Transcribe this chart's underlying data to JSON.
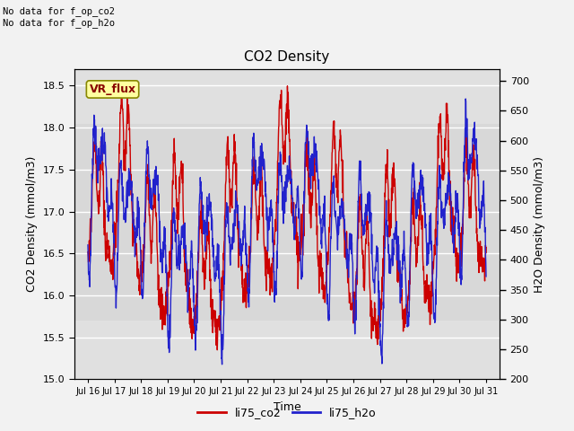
{
  "title": "CO2 Density",
  "xlabel": "Time",
  "ylabel_left": "CO2 Density (mmol/m3)",
  "ylabel_right": "H2O Density (mmol/m3)",
  "text_topleft": "No data for f_op_co2\nNo data for f_op_h2o",
  "annotation_text": "VR_flux",
  "xlim_days": [
    15.5,
    31.5
  ],
  "ylim_left": [
    15.0,
    18.7
  ],
  "ylim_right": [
    200,
    720
  ],
  "xtick_labels": [
    "Jul 16",
    "Jul 17",
    "Jul 18",
    "Jul 19",
    "Jul 20",
    "Jul 21",
    "Jul 22",
    "Jul 23",
    "Jul 24",
    "Jul 25",
    "Jul 26",
    "Jul 27",
    "Jul 28",
    "Jul 29",
    "Jul 30",
    "Jul 31"
  ],
  "xtick_positions": [
    16,
    17,
    18,
    19,
    20,
    21,
    22,
    23,
    24,
    25,
    26,
    27,
    28,
    29,
    30,
    31
  ],
  "yticks_left": [
    15.0,
    15.5,
    16.0,
    16.5,
    17.0,
    17.5,
    18.0,
    18.5
  ],
  "yticks_right": [
    200,
    250,
    300,
    350,
    400,
    450,
    500,
    550,
    600,
    650,
    700
  ],
  "color_co2": "#cc0000",
  "color_h2o": "#2222cc",
  "legend_labels": [
    "li75_co2",
    "li75_h2o"
  ],
  "bg_color": "#f2f2f2",
  "plot_bg_color": "#e0e0e0",
  "grid_color": "#ffffff",
  "shaded_band_ymin": 15.7,
  "shaded_band_ymax": 18.05,
  "shaded_band_color": "#d8d8d8",
  "annotation_bg": "#ffffa0",
  "annotation_border": "#888800",
  "linewidth": 1.0,
  "figsize": [
    6.4,
    4.8
  ],
  "dpi": 100
}
